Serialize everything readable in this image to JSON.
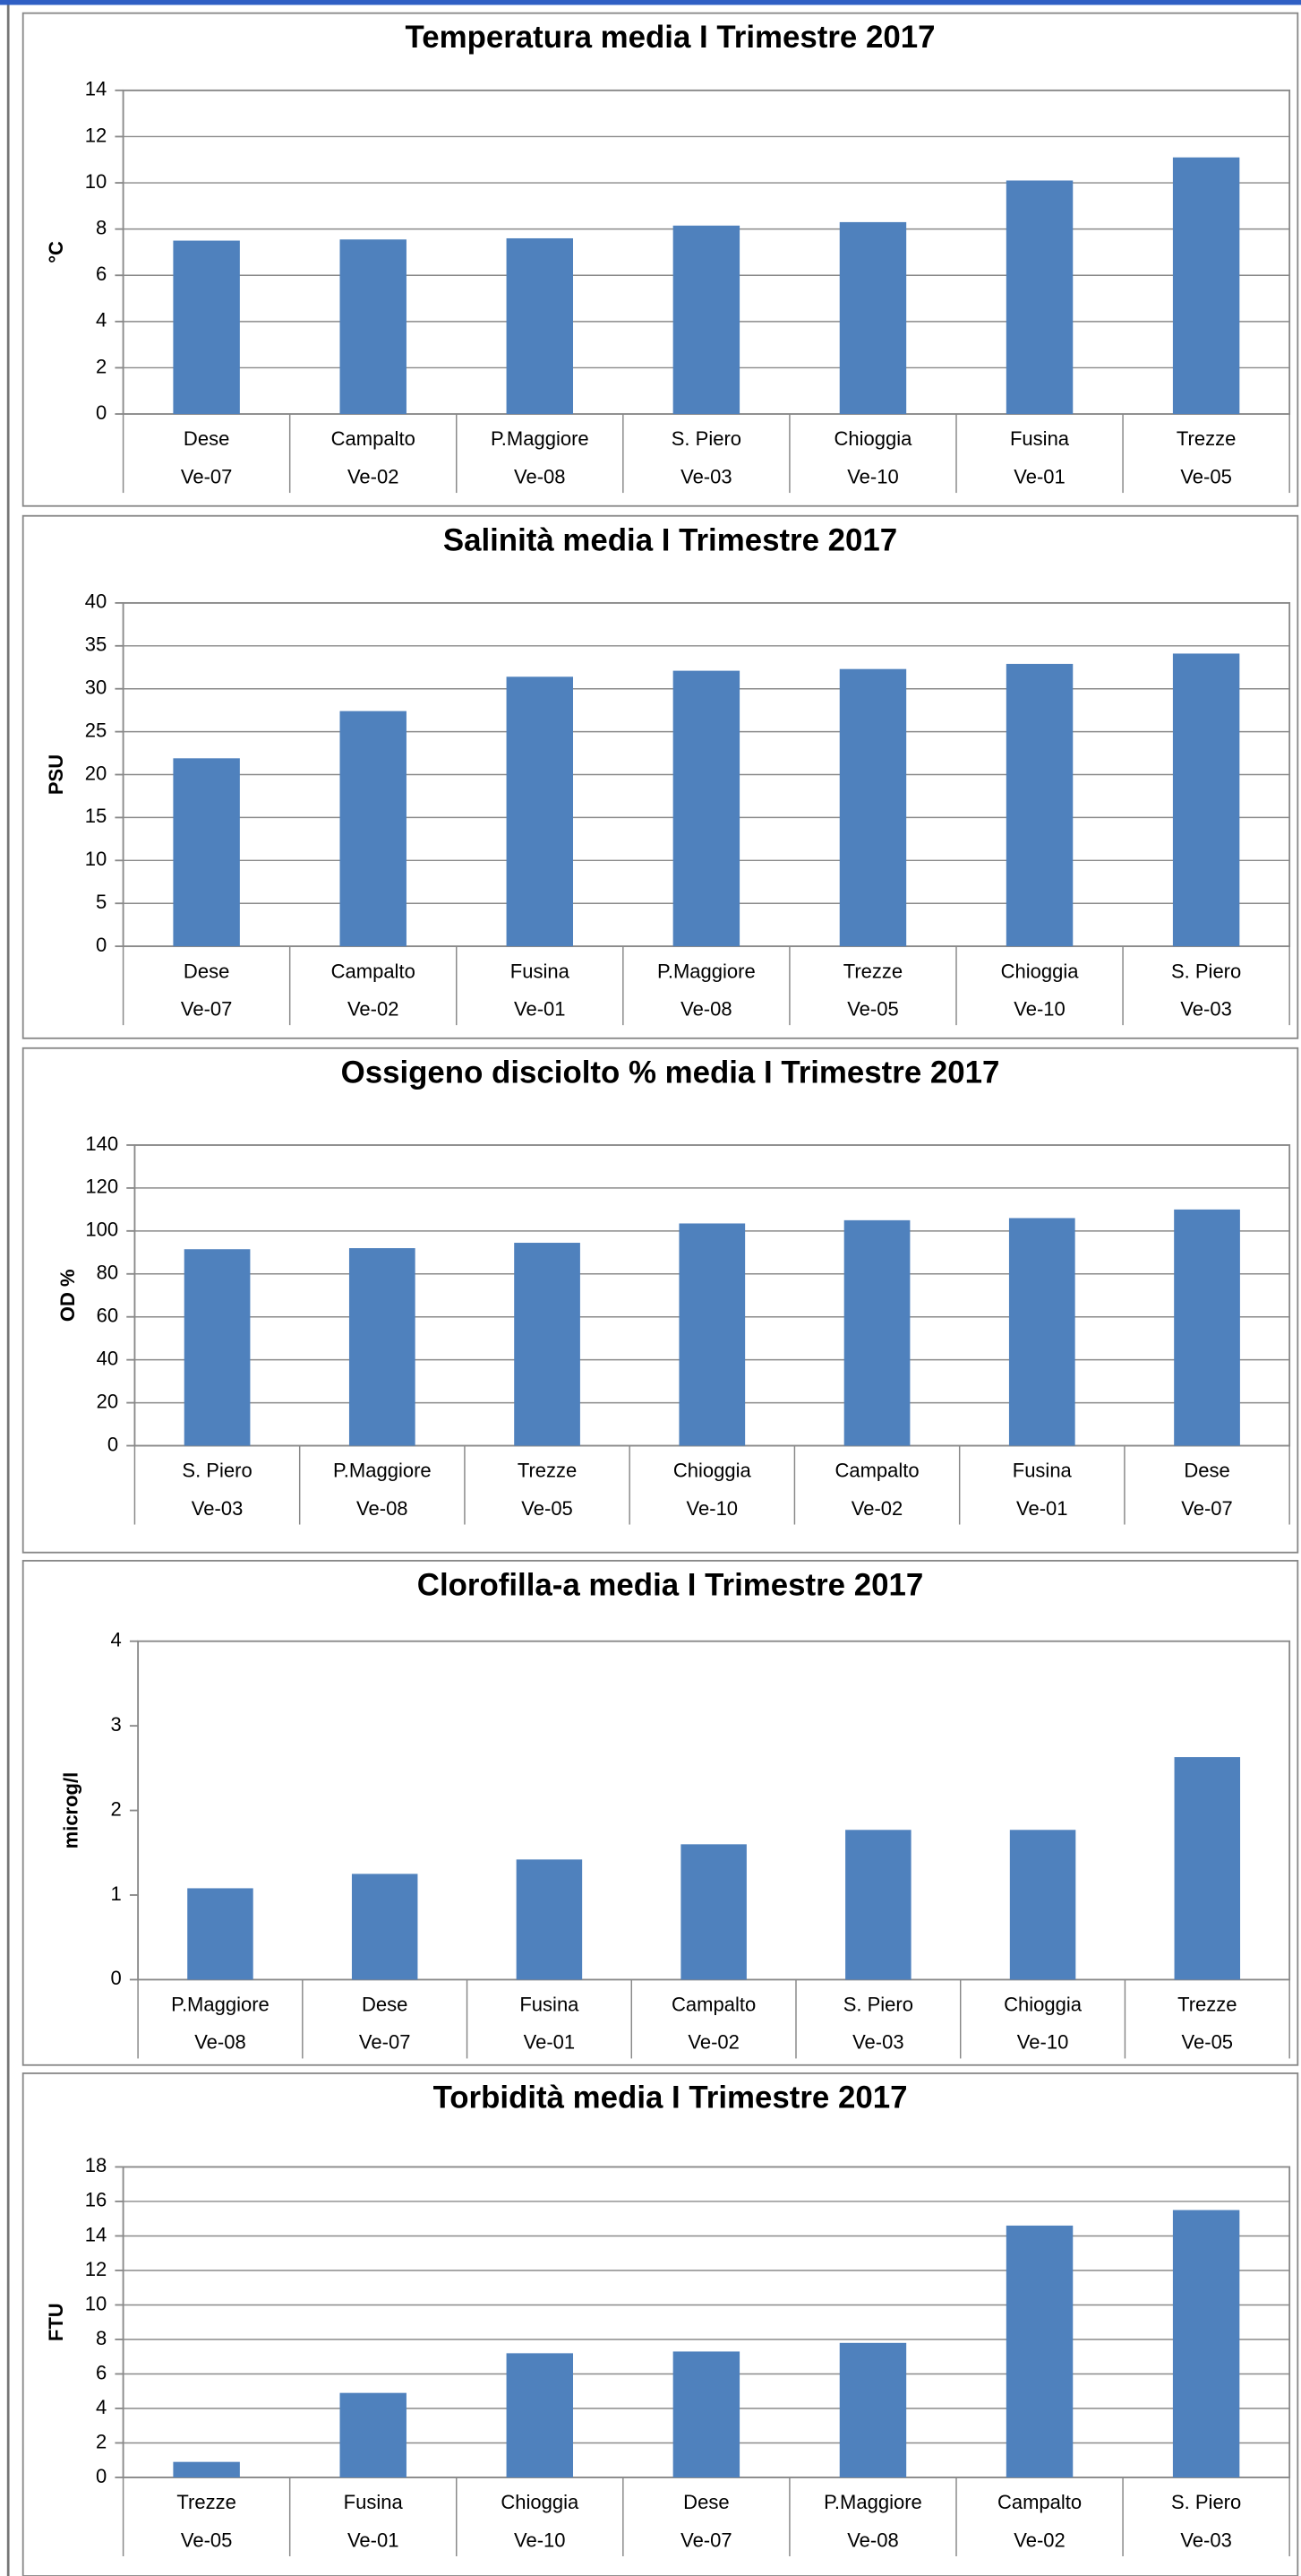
{
  "chart_data": [
    {
      "type": "bar",
      "title": "Temperatura media I Trimestre 2017",
      "y_label": "°C",
      "categories": [
        "Dese",
        "Campalto",
        "P.Maggiore",
        "S. Piero",
        "Chioggia",
        "Fusina",
        "Trezze"
      ],
      "category_codes": [
        "Ve-07",
        "Ve-02",
        "Ve-08",
        "Ve-03",
        "Ve-10",
        "Ve-01",
        "Ve-05"
      ],
      "values": [
        7.5,
        7.55,
        7.6,
        8.15,
        8.3,
        10.1,
        11.1
      ],
      "color": "#4f81bd",
      "ylim": [
        0,
        14
      ],
      "yticks": [
        0,
        2,
        4,
        6,
        8,
        10,
        12,
        14
      ],
      "grid": true
    },
    {
      "type": "bar",
      "title": "Salinità media I Trimestre 2017",
      "y_label": "PSU",
      "categories": [
        "Dese",
        "Campalto",
        "Fusina",
        "P.Maggiore",
        "Trezze",
        "Chioggia",
        "S. Piero"
      ],
      "category_codes": [
        "Ve-07",
        "Ve-02",
        "Ve-01",
        "Ve-08",
        "Ve-05",
        "Ve-10",
        "Ve-03"
      ],
      "values": [
        21.9,
        27.4,
        31.4,
        32.1,
        32.3,
        32.9,
        34.1
      ],
      "color": "#4f81bd",
      "ylim": [
        0,
        40
      ],
      "yticks": [
        0,
        5,
        10,
        15,
        20,
        25,
        30,
        35,
        40
      ],
      "grid": true
    },
    {
      "type": "bar",
      "title": "Ossigeno disciolto %  media I Trimestre 2017",
      "y_label": "OD %",
      "categories": [
        "S. Piero",
        "P.Maggiore",
        "Trezze",
        "Chioggia",
        "Campalto",
        "Fusina",
        "Dese"
      ],
      "category_codes": [
        "Ve-03",
        "Ve-08",
        "Ve-05",
        "Ve-10",
        "Ve-02",
        "Ve-01",
        "Ve-07"
      ],
      "values": [
        91.5,
        92,
        94.5,
        103.5,
        105,
        106,
        110
      ],
      "color": "#4f81bd",
      "ylim": [
        0,
        140
      ],
      "yticks": [
        0,
        20,
        40,
        60,
        80,
        100,
        120,
        140
      ],
      "grid": true
    },
    {
      "type": "bar",
      "title": "Clorofilla-a  media I Trimestre 2017",
      "y_label": "microg/l",
      "categories": [
        "P.Maggiore",
        "Dese",
        "Fusina",
        "Campalto",
        "S. Piero",
        "Chioggia",
        "Trezze"
      ],
      "category_codes": [
        "Ve-08",
        "Ve-07",
        "Ve-01",
        "Ve-02",
        "Ve-03",
        "Ve-10",
        "Ve-05"
      ],
      "values": [
        1.08,
        1.25,
        1.42,
        1.6,
        1.77,
        1.77,
        2.63
      ],
      "color": "#4f81bd",
      "ylim": [
        0,
        4
      ],
      "yticks": [
        0,
        1,
        2,
        3,
        4
      ],
      "grid": false
    },
    {
      "type": "bar",
      "title": "Torbidità  media I Trimestre 2017",
      "y_label": "FTU",
      "categories": [
        "Trezze",
        "Fusina",
        "Chioggia",
        "Dese",
        "P.Maggiore",
        "Campalto",
        "S. Piero"
      ],
      "category_codes": [
        "Ve-05",
        "Ve-01",
        "Ve-10",
        "Ve-07",
        "Ve-08",
        "Ve-02",
        "Ve-03"
      ],
      "values": [
        0.9,
        4.9,
        7.2,
        7.3,
        7.8,
        14.6,
        15.5
      ],
      "color": "#4f81bd",
      "ylim": [
        0,
        18
      ],
      "yticks": [
        0,
        2,
        4,
        6,
        8,
        10,
        12,
        14,
        16,
        18
      ],
      "grid": true
    }
  ]
}
